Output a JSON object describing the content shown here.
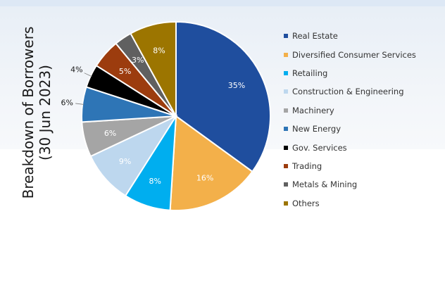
{
  "chart_data": {
    "type": "pie",
    "ylabel": [
      "Breakdown of Borrowers",
      "(30 Jun 2023)"
    ],
    "slices": [
      {
        "name": "Real Estate",
        "value": 35,
        "label": "35%",
        "color": "#1f4e9e",
        "label_color": "#ffffff"
      },
      {
        "name": "Diversified Consumer Services",
        "value": 16,
        "label": "16%",
        "color": "#f3b04a",
        "label_color": "#ffffff"
      },
      {
        "name": "Retailing",
        "value": 8,
        "label": "8%",
        "color": "#00aeef",
        "label_color": "#ffffff"
      },
      {
        "name": "Construction & Engineering",
        "value": 9,
        "label": "9%",
        "color": "#bdd7ee",
        "label_color": "#ffffff"
      },
      {
        "name": "Machinery",
        "value": 6,
        "label": "6%",
        "color": "#a5a5a5",
        "label_color": "#ffffff"
      },
      {
        "name": "New Energy",
        "value": 6,
        "label": "6%",
        "color": "#2e75b6",
        "label_color": "#1a1a1a"
      },
      {
        "name": "Gov. Services",
        "value": 4,
        "label": "4%",
        "color": "#000000",
        "label_color": "#1a1a1a"
      },
      {
        "name": "Trading",
        "value": 5,
        "label": "5%",
        "color": "#9c3c0e",
        "label_color": "#ffffff"
      },
      {
        "name": "Metals & Mining",
        "value": 3,
        "label": "3%",
        "color": "#606060",
        "label_color": "#ffffff"
      },
      {
        "name": "Others",
        "value": 8,
        "label": "8%",
        "color": "#9c7500",
        "label_color": "#ffffff"
      }
    ]
  }
}
